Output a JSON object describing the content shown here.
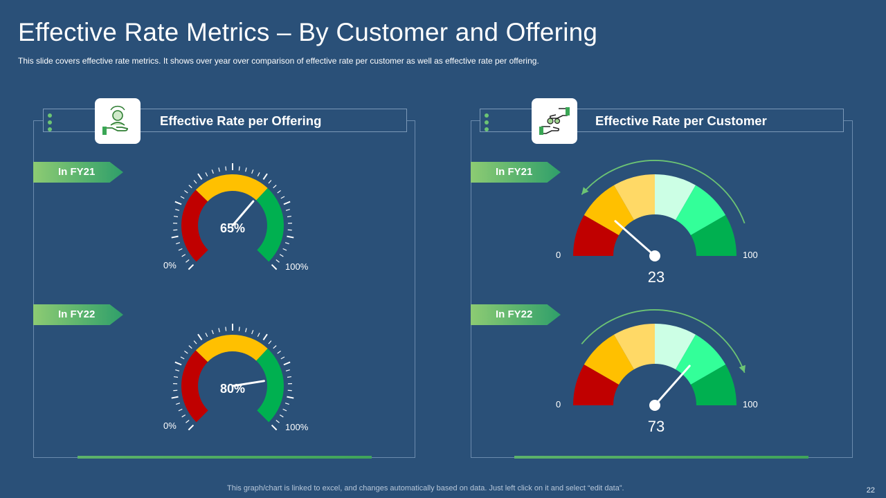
{
  "slide": {
    "title": "Effective Rate Metrics – By Customer and Offering",
    "subtitle": "This slide covers effective  rate metrics. It shows over year over  comparison  of effective  rate per customer as well as effective  rate per offering.",
    "footer": "This graph/chart is linked to excel,  and changes automatically based on data. Just left click on it and select “edit data”.",
    "page_number": "22"
  },
  "panels": {
    "offering": {
      "title": "Effective Rate per Offering",
      "icon": "hand-person-icon"
    },
    "customer": {
      "title": "Effective Rate per Customer",
      "icon": "hands-gears-icon"
    }
  },
  "tags": {
    "fy21": "In FY21",
    "fy22": "In FY22"
  },
  "colors": {
    "red": "#c00000",
    "orange": "#ffc000",
    "green": "#00b050",
    "red2": "#c00000",
    "amber2": "#ffc000",
    "sand2": "#ffd966",
    "mint2": "#ccffe5",
    "lime2": "#33ff99",
    "green2": "#00b050"
  },
  "chart_data": [
    {
      "type": "gauge",
      "panel": "offering",
      "period": "In FY21",
      "value": 65,
      "label": "65%",
      "min_label": "0%",
      "max_label": "100%"
    },
    {
      "type": "gauge",
      "panel": "offering",
      "period": "In FY22",
      "value": 80,
      "label": "80%",
      "min_label": "0%",
      "max_label": "100%"
    },
    {
      "type": "gauge",
      "panel": "customer",
      "period": "In FY21",
      "value": 23,
      "label": "23",
      "min_label": "0",
      "max_label": "100"
    },
    {
      "type": "gauge",
      "panel": "customer",
      "period": "In FY22",
      "value": 73,
      "label": "73",
      "min_label": "0",
      "max_label": "100"
    }
  ]
}
